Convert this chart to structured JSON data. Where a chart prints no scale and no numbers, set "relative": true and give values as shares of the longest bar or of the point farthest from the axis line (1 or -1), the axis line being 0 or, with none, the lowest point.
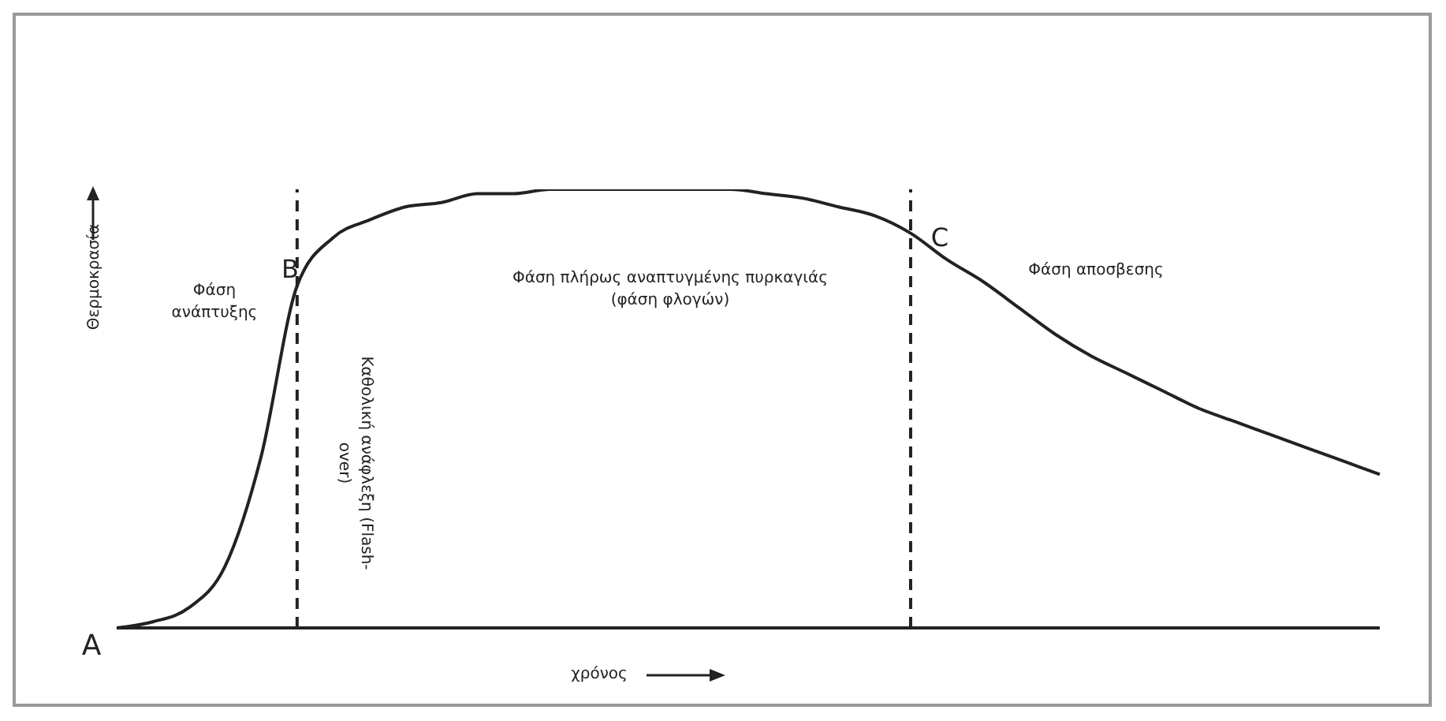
{
  "chart_data": {
    "type": "line",
    "relative": true,
    "xlabel": "χρόνος",
    "ylabel": "Θερμοκρασία",
    "categories": [
      null,
      null,
      null,
      null,
      null,
      null,
      null,
      null,
      null,
      null,
      null,
      null,
      null,
      null,
      null,
      null,
      null,
      null,
      null,
      null,
      null,
      null,
      null,
      null,
      null,
      null,
      null,
      null,
      null,
      null,
      null,
      null,
      null,
      null,
      null,
      null
    ],
    "series": [
      {
        "color": "#222222",
        "values": [
          0,
          0.014,
          0.046,
          0.14,
          0.39,
          0.78,
          0.89,
          0.93,
          0.96,
          0.97,
          0.99,
          0.99,
          1,
          1,
          1,
          1,
          1,
          1,
          0.99,
          0.98,
          0.96,
          0.94,
          0.9,
          0.84,
          0.79,
          0.73,
          0.67,
          0.62,
          0.58,
          0.54,
          0.5,
          0.47,
          0.44,
          0.41,
          0.38,
          0.35
        ]
      }
    ],
    "annotations": [
      "A",
      "B",
      "C",
      "Φάση ανάπτυξης",
      "Φάση πλήρως αναπτυγμένης πυρκαγιάς (φάση φλογών)",
      "Φάση αποσβεσης",
      "Καθολική ανάφλεξη (Flash-over)"
    ],
    "grid": false,
    "legend": false,
    "marker": "none",
    "line_style": "solid"
  }
}
